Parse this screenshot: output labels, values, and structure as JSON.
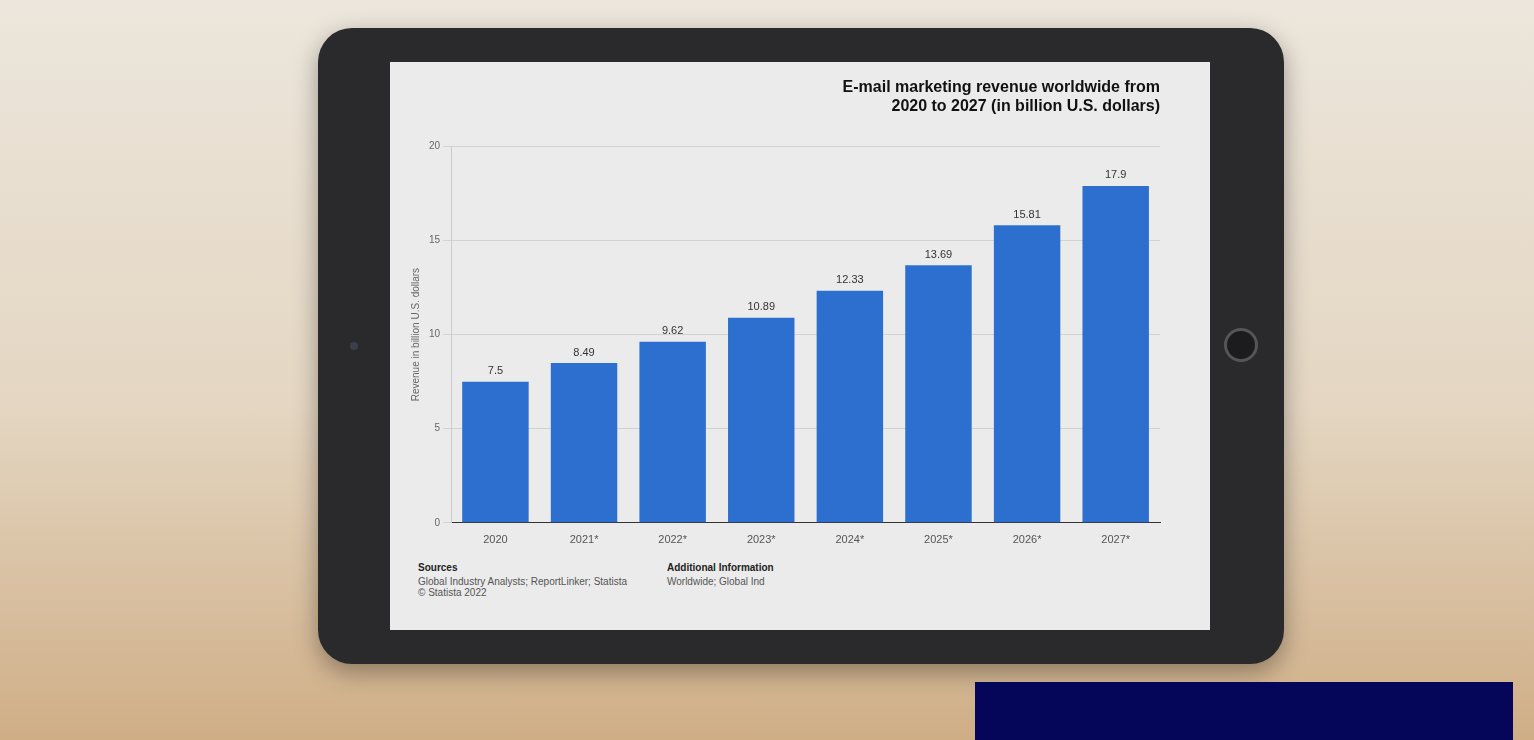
{
  "chart_data": {
    "type": "bar",
    "title": "E-mail marketing revenue worldwide from 2020 to 2027 (in billion U.S. dollars)",
    "y_label": "Revenue in billion U.S. dollars",
    "categories": [
      "2020",
      "2021*",
      "2022*",
      "2023*",
      "2024*",
      "2025*",
      "2026*",
      "2027*"
    ],
    "values": [
      7.5,
      8.49,
      9.62,
      10.89,
      12.33,
      13.69,
      15.81,
      17.9
    ],
    "color": "#2d6fcf",
    "ylim": [
      0,
      20
    ],
    "yticks": [
      0,
      5,
      10,
      15,
      20
    ],
    "grid": true,
    "data_labels": true,
    "annotations": [
      {
        "title": "Sources",
        "lines": [
          "Global Industry Analysts; ReportLinker; Statista",
          "© Statista 2022"
        ]
      },
      {
        "title": "Additional Information",
        "lines": [
          "Worldwide; Global Ind"
        ]
      }
    ]
  }
}
